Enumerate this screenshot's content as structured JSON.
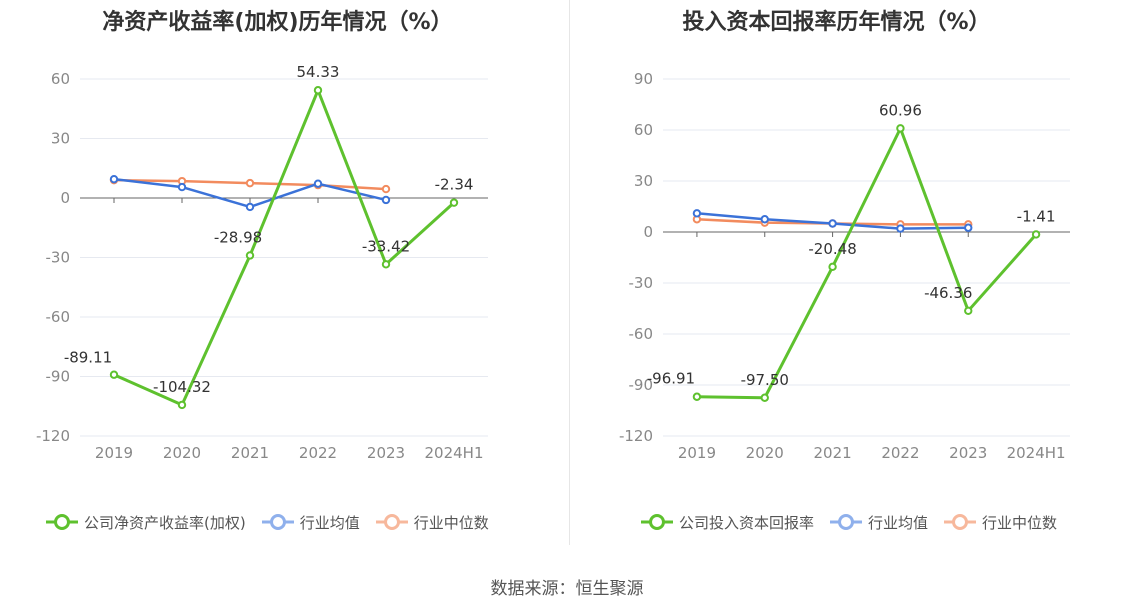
{
  "chart_data": [
    {
      "type": "line",
      "title": "净资产收益率(加权)历年情况（%）",
      "categories": [
        "2019",
        "2020",
        "2021",
        "2022",
        "2023",
        "2024H1"
      ],
      "ylim": [
        -120,
        60
      ],
      "yticks": [
        "60",
        "30",
        "0",
        "-30",
        "-60",
        "-90",
        "-120"
      ],
      "series": [
        {
          "name": "公司净资产收益率(加权)",
          "color": "#5ec12e",
          "values": [
            -89.11,
            -104.32,
            -28.98,
            54.33,
            -33.42,
            -2.34
          ],
          "labels": [
            "-89.11",
            "-104.32",
            "-28.98",
            "54.33",
            "-33.42",
            "-2.34"
          ]
        },
        {
          "name": "行业均值",
          "color": "#3b72d8",
          "values": [
            9.5,
            5.5,
            -4.5,
            7.2,
            -1.0,
            null
          ]
        },
        {
          "name": "行业中位数",
          "color": "#f28b5e",
          "values": [
            9.0,
            8.5,
            7.5,
            6.5,
            4.5,
            null
          ]
        }
      ],
      "legend": [
        "公司净资产收益率(加权)",
        "行业均值",
        "行业中位数"
      ]
    },
    {
      "type": "line",
      "title": "投入资本回报率历年情况（%）",
      "categories": [
        "2019",
        "2020",
        "2021",
        "2022",
        "2023",
        "2024H1"
      ],
      "ylim": [
        -120,
        90
      ],
      "yticks": [
        "90",
        "60",
        "30",
        "0",
        "-30",
        "-60",
        "-90",
        "-120"
      ],
      "series": [
        {
          "name": "公司投入资本回报率",
          "color": "#5ec12e",
          "values": [
            -96.91,
            -97.5,
            -20.48,
            60.96,
            -46.36,
            -1.41
          ],
          "labels": [
            "-96.91",
            "-97.50",
            "-20.48",
            "60.96",
            "-46.36",
            "-1.41"
          ]
        },
        {
          "name": "行业均值",
          "color": "#3b72d8",
          "values": [
            11.0,
            7.5,
            5.0,
            2.0,
            2.5,
            null
          ]
        },
        {
          "name": "行业中位数",
          "color": "#f28b5e",
          "values": [
            7.5,
            5.5,
            5.0,
            4.5,
            4.5,
            null
          ]
        }
      ],
      "legend": [
        "公司投入资本回报率",
        "行业均值",
        "行业中位数"
      ]
    }
  ],
  "source": "数据来源：恒生聚源"
}
